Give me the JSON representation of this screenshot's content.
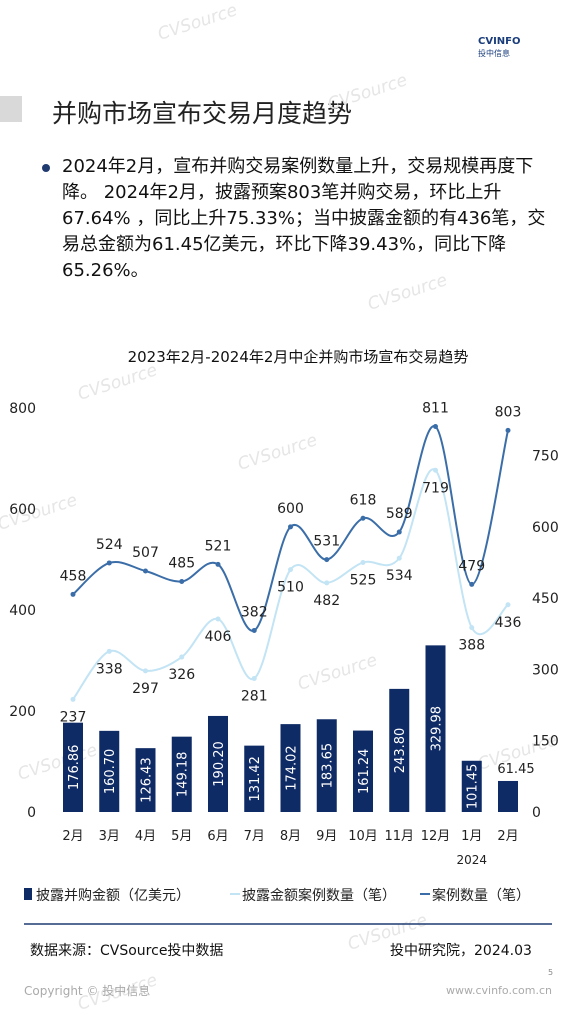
{
  "header": {
    "logo_text": "CVINFO",
    "logo_sub": "投中信息"
  },
  "title": "并购市场宣布交易月度趋势",
  "bullet": "2024年2月，宣布并购交易案例数量上升，交易规模再度下降。 2024年2月，披露预案803笔并购交易，环比上升67.64% ，同比上升75.33%；当中披露金额的有436笔，交易总金额为61.45亿美元，环比下降39.43%，同比下降65.26%。",
  "watermark": "CVSource",
  "chart_data": {
    "type": "combo",
    "title": "2023年2月-2024年2月中企并购市场宣布交易趋势",
    "categories": [
      "2月",
      "3月",
      "4月",
      "5月",
      "6月",
      "7月",
      "8月",
      "9月",
      "10月",
      "11月",
      "12月",
      "1月",
      "2月"
    ],
    "x_group_label": "2024",
    "series": [
      {
        "name": "披露并购金额（亿美元）",
        "type": "bar",
        "color": "#0f2b66",
        "values": [
          176.86,
          160.7,
          126.43,
          149.18,
          190.2,
          131.42,
          174.02,
          183.65,
          161.24,
          243.8,
          329.98,
          101.45,
          61.45
        ],
        "value_labels": [
          "176.86",
          "160.70",
          "126.43",
          "149.18",
          "190.20",
          "131.42",
          "174.02",
          "183.65",
          "161.24",
          "243.80",
          "329.98",
          "101.45",
          "61.45"
        ]
      },
      {
        "name": "披露金额案例数量（笔）",
        "type": "line",
        "axis": "y2",
        "color": "#c3e4f4",
        "values": [
          237,
          338,
          297,
          326,
          406,
          281,
          510,
          482,
          525,
          534,
          719,
          388,
          436
        ]
      },
      {
        "name": "案例数量（笔）",
        "type": "line",
        "axis": "y2",
        "color": "#3b6ea8",
        "values": [
          458,
          524,
          507,
          485,
          521,
          382,
          600,
          531,
          618,
          589,
          811,
          479,
          803
        ]
      }
    ],
    "ylim": [
      0,
      800
    ],
    "yticks": [
      0,
      200,
      400,
      600,
      800
    ],
    "y2lim": [
      0,
      850
    ],
    "y2ticks": [
      0,
      150,
      300,
      450,
      600,
      750
    ],
    "legend": "bottom"
  },
  "source": "数据来源：CVSource投中数据",
  "org": "投中研究院，2024.03",
  "page_number": "5",
  "copyright": "Copyright © 投中信息",
  "website": "www.cvinfo.com.cn"
}
